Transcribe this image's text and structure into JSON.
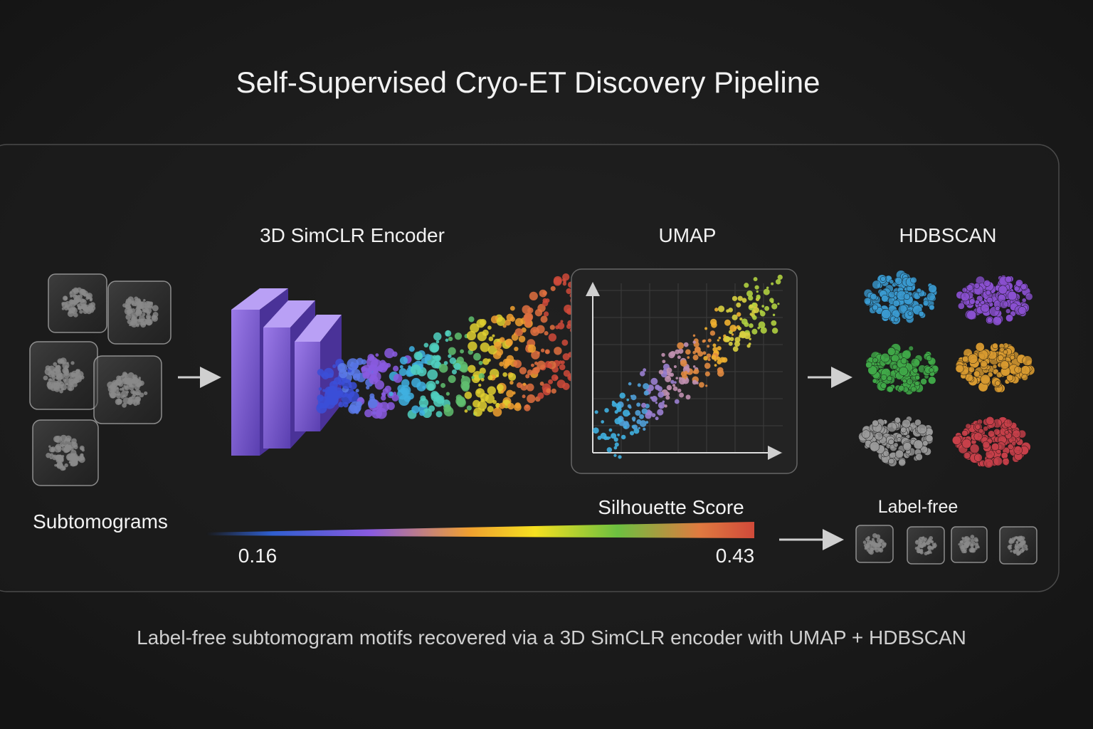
{
  "title": "Self-Supervised Cryo-ET Discovery Pipeline",
  "stages": [
    {
      "label": "Subtomograms"
    },
    {
      "label": "3D SimCLR Encoder"
    },
    {
      "label": "UMAP"
    },
    {
      "label": "HDBSCAN"
    }
  ],
  "colorbar": {
    "label": "Silhouette Score",
    "min": 0.16,
    "max": 0.43
  },
  "output": {
    "label": "Label-free"
  },
  "caption": "Label-free subtomogram motifs recovered via a 3D SimCLR encoder with UMAP + HDBSCAN"
}
